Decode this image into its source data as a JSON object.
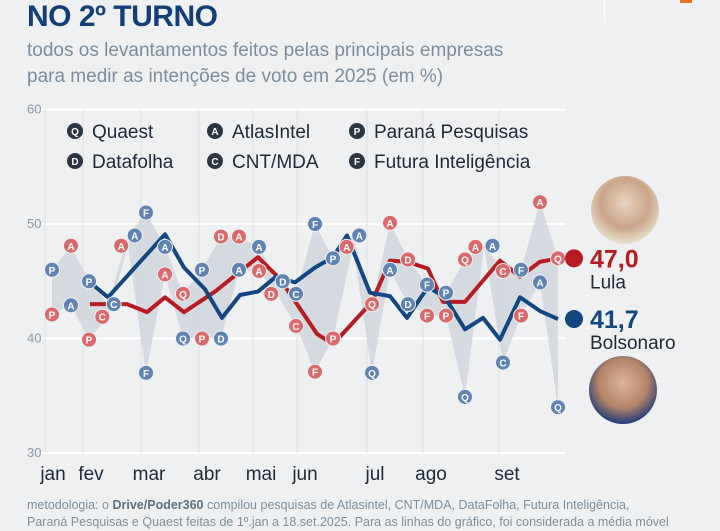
{
  "header": {
    "title": "NO 2º TURNO",
    "subtitle_1": "todos os levantamentos feitos pelas principais empresas",
    "subtitle_2": "para medir as intenções de voto em 2025 (em %)"
  },
  "footer": {
    "prefix": "metodologia: o ",
    "source": "Drive/Poder360",
    "rest_1": " compilou pesquisas de Atlasintel, CNT/MDA, DataFolha, Futura Inteligência,",
    "line_2": "Paraná Pesquisas e Quaest feitas de 1º.jan a 18.set.2025. Para as linhas do gráfico, foi considerada a média móvel"
  },
  "colors": {
    "lula": "#b71c22",
    "lula_marker": "#d9696b",
    "bolsonaro": "#134780",
    "bolsonaro_marker": "#5f84b3",
    "band": "#cfd6dc",
    "title": "#123f78"
  },
  "chart_data": {
    "type": "line",
    "x_unit": "day of 2025 (approx.)",
    "ylim": [
      30,
      60
    ],
    "yticks": [
      30,
      40,
      50,
      60
    ],
    "xlim": [
      0,
      262
    ],
    "months": [
      {
        "label": "jan",
        "x": 3
      },
      {
        "label": "fev",
        "x": 22
      },
      {
        "label": "mar",
        "x": 51
      },
      {
        "label": "abr",
        "x": 80
      },
      {
        "label": "mai",
        "x": 107
      },
      {
        "label": "jun",
        "x": 129
      },
      {
        "label": "jul",
        "x": 164
      },
      {
        "label": "ago",
        "x": 192
      },
      {
        "label": "set",
        "x": 230
      }
    ],
    "legend": [
      {
        "letter": "Q",
        "name": "Quaest"
      },
      {
        "letter": "A",
        "name": "AtlasIntel"
      },
      {
        "letter": "P",
        "name": "Paraná Pesquisas"
      },
      {
        "letter": "D",
        "name": "Datafolha"
      },
      {
        "letter": "C",
        "name": "CNT/MDA"
      },
      {
        "letter": "F",
        "name": "Futura Inteligência"
      }
    ],
    "series": [
      {
        "name": "Lula",
        "final": "47,0",
        "color": "#b71c22",
        "x": [
          22.5,
          41,
          51,
          60,
          69.5,
          85,
          106.5,
          117.5,
          136,
          144,
          163.5,
          172.5,
          181,
          191.5,
          199,
          210,
          227.5,
          237.5,
          247.5,
          256.5
        ],
        "values": [
          43.0,
          43.0,
          42.3,
          43.6,
          42.3,
          44.1,
          47.1,
          45.2,
          40.4,
          39.5,
          43.2,
          46.8,
          46.7,
          46.1,
          43.2,
          43.2,
          46.8,
          45.4,
          46.7,
          47.0
        ]
      },
      {
        "name": "Bolsonaro",
        "final": "41,7",
        "color": "#134780",
        "x": [
          22.5,
          31.5,
          60,
          69.5,
          80,
          88.5,
          97.5,
          106.5,
          115.5,
          125,
          135,
          144,
          151,
          162.5,
          172.5,
          181,
          191.5,
          200,
          210,
          219,
          227.5,
          237.5,
          247.5,
          256.5
        ],
        "values": [
          44.9,
          43.6,
          49.1,
          46.2,
          44.3,
          41.8,
          43.8,
          44.1,
          45.4,
          44.9,
          46.2,
          47.1,
          49.0,
          44.0,
          43.7,
          41.8,
          44.5,
          43.6,
          40.8,
          41.8,
          39.9,
          43.6,
          42.4,
          41.7
        ]
      }
    ],
    "polls": [
      {
        "x": 3.5,
        "letter": "P",
        "lula": 42.1,
        "bolsonaro": 46.0
      },
      {
        "x": 13,
        "letter": "A",
        "lula": 48.1,
        "bolsonaro": 42.9
      },
      {
        "x": 22,
        "letter": "P",
        "lula": 39.9,
        "bolsonaro": 45.0
      },
      {
        "x": 31.5,
        "letter": "C",
        "lula": 41.9,
        "bolsonaro": 43.0
      },
      {
        "x": 41.5,
        "letter": "A",
        "lula": 48.1,
        "bolsonaro": 49.0
      },
      {
        "x": 50.5,
        "letter": "F",
        "lula": 37.0,
        "bolsonaro": 51.0,
        "lula_color": "blue"
      },
      {
        "x": 60,
        "letter": "A",
        "lula": 45.6,
        "bolsonaro": 48.0
      },
      {
        "x": 69,
        "letter": "Q",
        "lula": 43.9,
        "bolsonaro": 40.0
      },
      {
        "x": 78.5,
        "letter": "P",
        "lula": 40.0,
        "bolsonaro": 46.0
      },
      {
        "x": 88,
        "letter": "D",
        "lula": 48.9,
        "bolsonaro": 40.0
      },
      {
        "x": 97,
        "letter": "A",
        "lula": 48.9,
        "bolsonaro": 46.0
      },
      {
        "x": 107,
        "letter": "A",
        "lula": 45.9,
        "bolsonaro": 48.0
      },
      {
        "x": 116,
        "letter": "D",
        "lula": 43.9,
        "bolsonaro": 45.0
      },
      {
        "x": 125.5,
        "letter": "C",
        "lula": 41.1,
        "bolsonaro": 43.9
      },
      {
        "x": 135,
        "letter": "F",
        "lula": 37.1,
        "bolsonaro": 50.0
      },
      {
        "x": 144,
        "letter": "P",
        "lula": 40.0,
        "bolsonaro": 47.0
      },
      {
        "x": 154,
        "letter": "A",
        "lula": 48.0,
        "bolsonaro": 49.0
      },
      {
        "x": 163.5,
        "letter": "Q",
        "lula": 43.0,
        "bolsonaro": 37.0
      },
      {
        "x": 172.5,
        "letter": "A",
        "lula": 50.1,
        "bolsonaro": 46.0
      },
      {
        "x": 181.5,
        "letter": "D",
        "lula": 46.9,
        "bolsonaro": 43.0
      },
      {
        "x": 191,
        "letter": "F",
        "lula": 42.0,
        "bolsonaro": 44.7
      },
      {
        "x": 200.5,
        "letter": "P",
        "lula": 42.0,
        "bolsonaro": 44.0
      },
      {
        "x": 210,
        "letter": "Q",
        "lula": 46.9,
        "bolsonaro": 34.9
      },
      {
        "x": 219.5,
        "letter": "A",
        "lula": 48.0,
        "bolsonaro": 48.1
      },
      {
        "x": 229,
        "letter": "C",
        "lula": 45.9,
        "bolsonaro": 37.9
      },
      {
        "x": 238,
        "letter": "F",
        "lula": 42.0,
        "bolsonaro": 46.0
      },
      {
        "x": 247.5,
        "letter": "A",
        "lula": 51.9,
        "bolsonaro": 44.9
      },
      {
        "x": 256.5,
        "letter": "Q",
        "lula": 47.0,
        "bolsonaro": 34.0
      }
    ]
  }
}
